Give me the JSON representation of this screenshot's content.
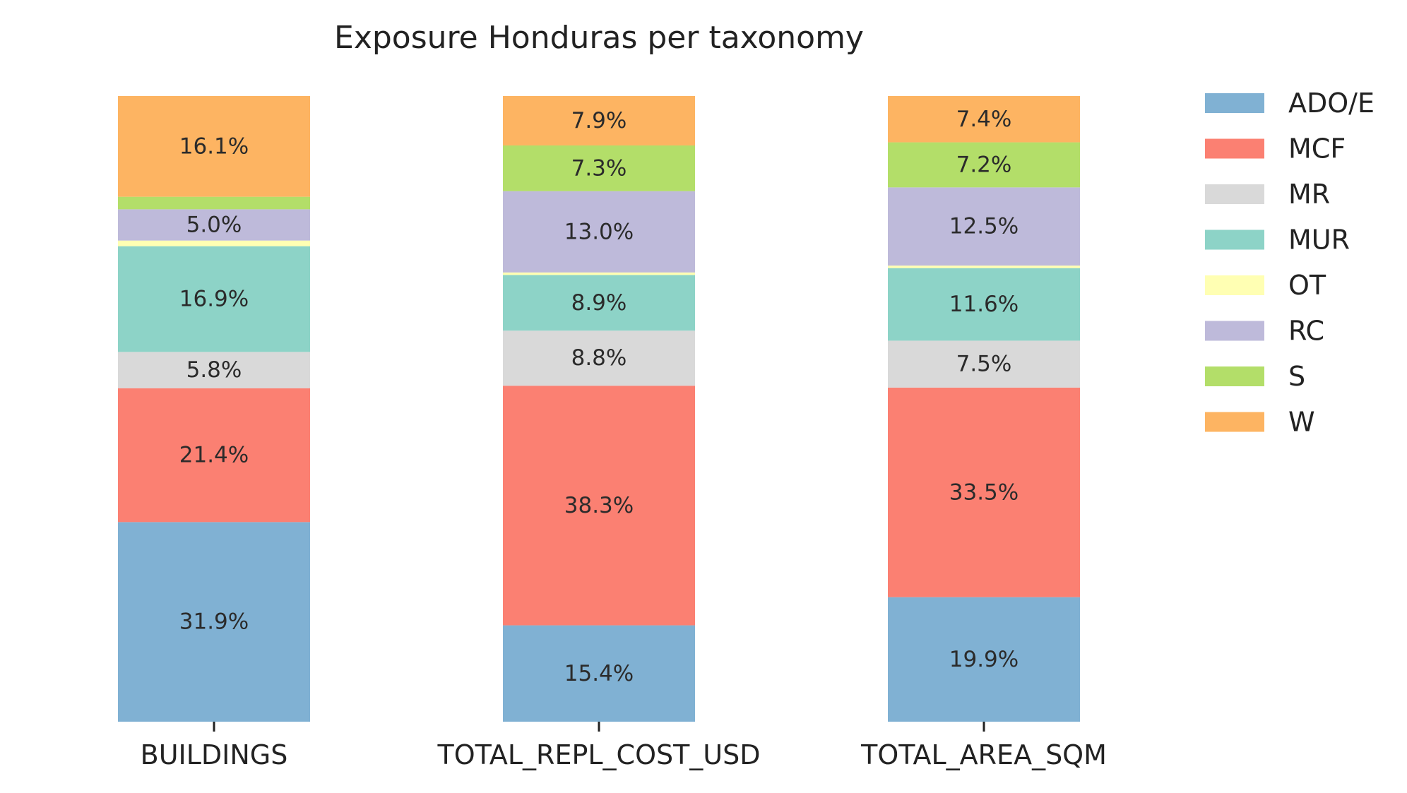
{
  "chart_data": {
    "type": "bar",
    "stacked": true,
    "normalized": true,
    "title": "Exposure Honduras per taxonomy",
    "xlabel": "",
    "ylabel": "",
    "ylim": [
      0,
      100
    ],
    "grid": false,
    "legend_position": "top-right",
    "categories": [
      "BUILDINGS",
      "TOTAL_REPL_COST_USD",
      "TOTAL_AREA_SQM"
    ],
    "series": [
      {
        "name": "ADO/E",
        "color": "#80b1d3",
        "values": [
          31.9,
          15.4,
          19.9
        ],
        "labels": [
          "31.9%",
          "15.4%",
          "19.9%"
        ]
      },
      {
        "name": "MCF",
        "color": "#fb8072",
        "values": [
          21.4,
          38.3,
          33.5
        ],
        "labels": [
          "21.4%",
          "38.3%",
          "33.5%"
        ]
      },
      {
        "name": "MR",
        "color": "#d9d9d9",
        "values": [
          5.8,
          8.8,
          7.5
        ],
        "labels": [
          "5.8%",
          "8.8%",
          "7.5%"
        ]
      },
      {
        "name": "MUR",
        "color": "#8dd3c7",
        "values": [
          16.9,
          8.9,
          11.6
        ],
        "labels": [
          "16.9%",
          "8.9%",
          "11.6%"
        ]
      },
      {
        "name": "OT",
        "color": "#ffffb3",
        "values": [
          0.9,
          0.4,
          0.4
        ],
        "labels": [
          "",
          "",
          ""
        ]
      },
      {
        "name": "RC",
        "color": "#bebada",
        "values": [
          5.0,
          13.0,
          12.5
        ],
        "labels": [
          "5.0%",
          "13.0%",
          "12.5%"
        ]
      },
      {
        "name": "S",
        "color": "#b3de69",
        "values": [
          2.0,
          7.3,
          7.2
        ],
        "labels": [
          "",
          "7.3%",
          "7.2%"
        ]
      },
      {
        "name": "W",
        "color": "#fdb462",
        "values": [
          16.1,
          7.9,
          7.4
        ],
        "labels": [
          "16.1%",
          "7.9%",
          "7.4%"
        ]
      }
    ]
  }
}
